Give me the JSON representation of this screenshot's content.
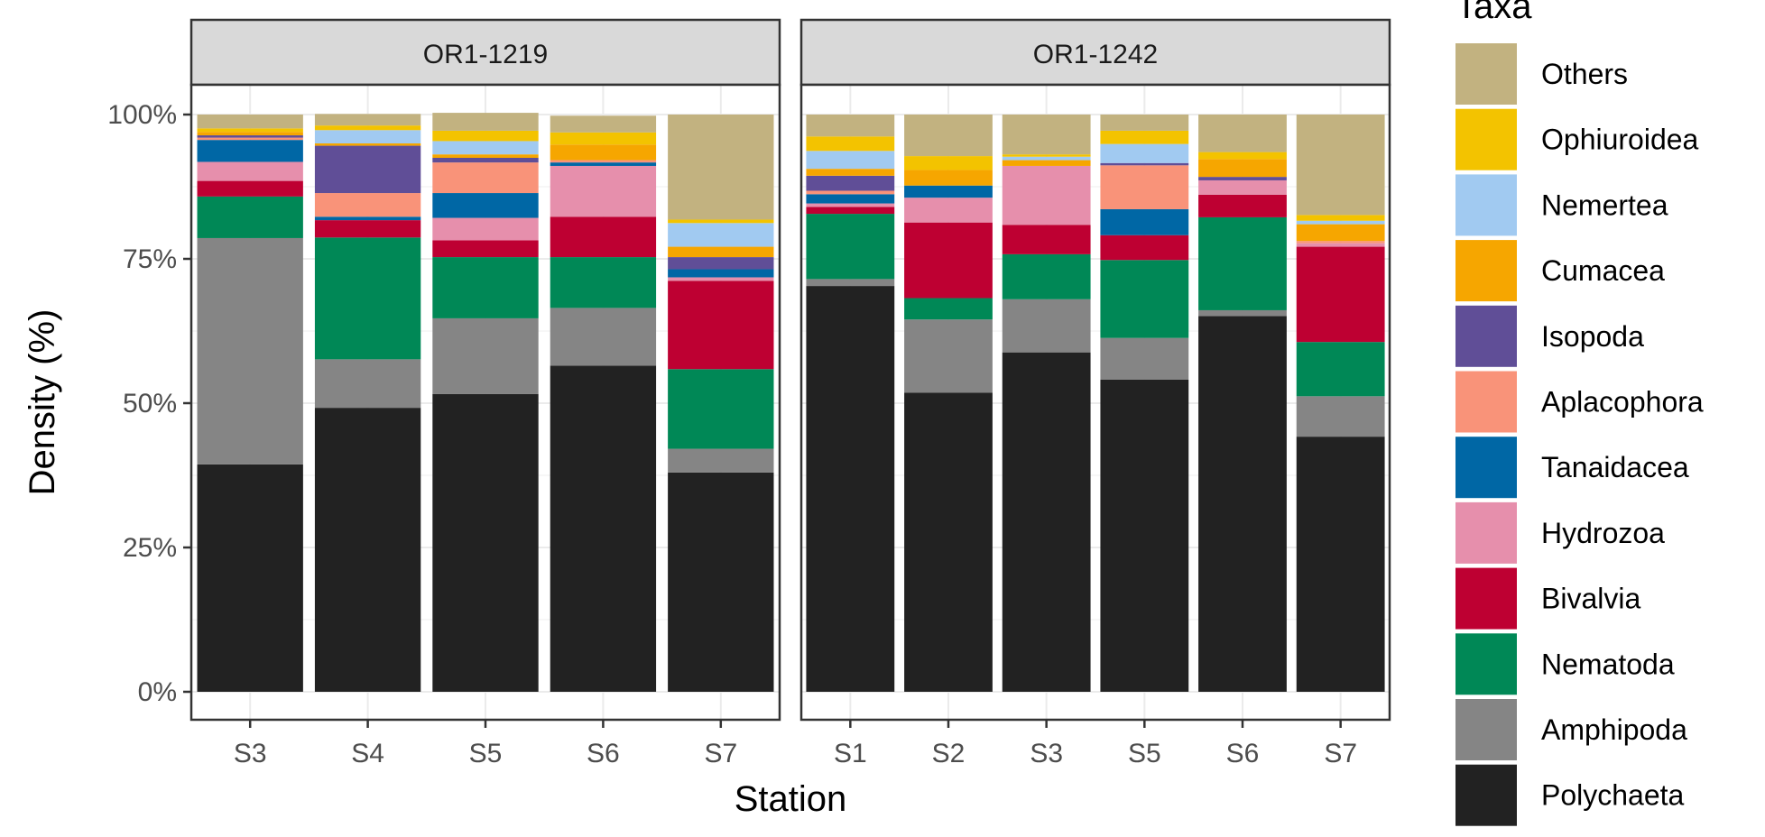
{
  "chart_data": {
    "type": "bar",
    "stacked": true,
    "xlabel": "Station",
    "ylabel": "Density (%)",
    "ylim": [
      0,
      100
    ],
    "y_ticks": [
      "0%",
      "25%",
      "50%",
      "75%",
      "100%"
    ],
    "grid": true,
    "legend": {
      "title": "Taxa",
      "placement": "right"
    },
    "taxa": [
      {
        "name": "Polychaeta",
        "color": "#222222"
      },
      {
        "name": "Amphipoda",
        "color": "#858585"
      },
      {
        "name": "Nematoda",
        "color": "#008856"
      },
      {
        "name": "Bivalvia",
        "color": "#be0032"
      },
      {
        "name": "Hydrozoa",
        "color": "#e68fac"
      },
      {
        "name": "Tanaidacea",
        "color": "#0067a5"
      },
      {
        "name": "Aplacophora",
        "color": "#f99379"
      },
      {
        "name": "Isopoda",
        "color": "#604e97"
      },
      {
        "name": "Cumacea",
        "color": "#f6a600"
      },
      {
        "name": "Nemertea",
        "color": "#a1caf1"
      },
      {
        "name": "Ophiuroidea",
        "color": "#f3c300"
      },
      {
        "name": "Others",
        "color": "#c2b280"
      }
    ],
    "panels": [
      {
        "title": "OR1-1219",
        "categories": [
          "S3",
          "S4",
          "S5",
          "S6",
          "S7"
        ],
        "bars": [
          [
            39.4,
            39.2,
            7.2,
            2.7,
            3.3,
            3.8,
            0.4,
            0.4,
            0.6,
            0.0,
            0.6,
            2.4
          ],
          [
            49.2,
            8.4,
            21.1,
            3.0,
            0.0,
            0.6,
            4.1,
            8.2,
            0.4,
            2.3,
            0.8,
            2.0
          ],
          [
            51.6,
            13.1,
            10.6,
            2.9,
            3.9,
            4.3,
            5.3,
            0.8,
            0.6,
            2.3,
            1.8,
            3.1
          ],
          [
            56.5,
            10.0,
            8.8,
            7.0,
            8.8,
            0.6,
            0.4,
            0.0,
            2.7,
            0.0,
            2.1,
            2.9
          ],
          [
            38.0,
            4.1,
            13.8,
            15.3,
            0.6,
            1.4,
            0.0,
            2.1,
            1.8,
            4.1,
            0.6,
            18.2
          ]
        ]
      },
      {
        "title": "OR1-1242",
        "categories": [
          "S1",
          "S2",
          "S3",
          "S5",
          "S6",
          "S7"
        ],
        "bars": [
          [
            70.3,
            1.2,
            11.3,
            1.2,
            0.6,
            1.6,
            0.6,
            2.6,
            1.2,
            3.1,
            2.5,
            3.8
          ],
          [
            51.8,
            12.7,
            3.7,
            13.1,
            4.3,
            2.1,
            0.0,
            0.0,
            2.7,
            0.0,
            2.4,
            7.2
          ],
          [
            58.8,
            9.2,
            7.8,
            5.1,
            10.2,
            0.0,
            0.0,
            0.0,
            1.0,
            0.6,
            0.4,
            6.9
          ],
          [
            54.1,
            7.2,
            13.5,
            4.3,
            0.0,
            4.5,
            7.6,
            0.4,
            0.0,
            3.3,
            2.3,
            2.8
          ],
          [
            65.1,
            1.0,
            16.1,
            3.9,
            2.5,
            0.0,
            0.0,
            0.6,
            3.1,
            0.0,
            1.2,
            6.5
          ],
          [
            44.2,
            7.0,
            9.4,
            16.5,
            0.6,
            0.0,
            0.4,
            0.0,
            2.9,
            0.6,
            1.0,
            17.4
          ]
        ]
      }
    ]
  }
}
